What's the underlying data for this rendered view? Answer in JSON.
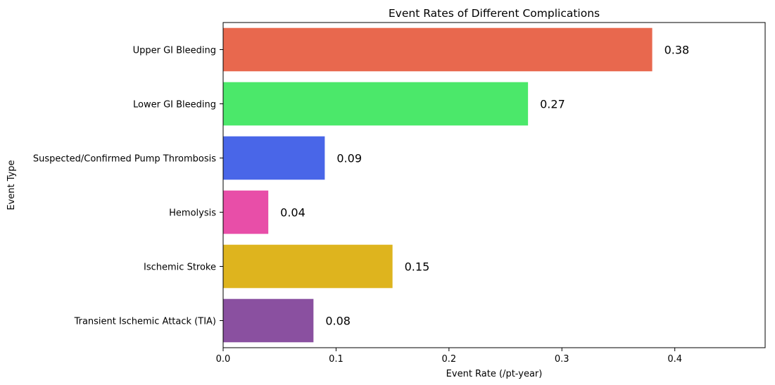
{
  "chart_data": {
    "type": "bar",
    "orientation": "horizontal",
    "title": "Event Rates of Different Complications",
    "xlabel": "Event Rate (/pt-year)",
    "ylabel": "Event Type",
    "xlim": [
      0,
      0.48
    ],
    "xticks": [
      0.0,
      0.1,
      0.2,
      0.3,
      0.4
    ],
    "xtick_labels": [
      "0.0",
      "0.1",
      "0.2",
      "0.3",
      "0.4"
    ],
    "grid": false,
    "categories": [
      "Upper GI Bleeding",
      "Lower GI Bleeding",
      "Suspected/Confirmed Pump Thrombosis",
      "Hemolysis",
      "Ischemic Stroke",
      "Transient Ischemic Attack (TIA)"
    ],
    "values": [
      0.38,
      0.27,
      0.09,
      0.04,
      0.15,
      0.08
    ],
    "value_labels": [
      "0.38",
      "0.27",
      "0.09",
      "0.04",
      "0.15",
      "0.08"
    ],
    "colors": [
      "#e8684e",
      "#4be86a",
      "#4966e8",
      "#e84ea8",
      "#deb41e",
      "#8a50a0"
    ]
  }
}
